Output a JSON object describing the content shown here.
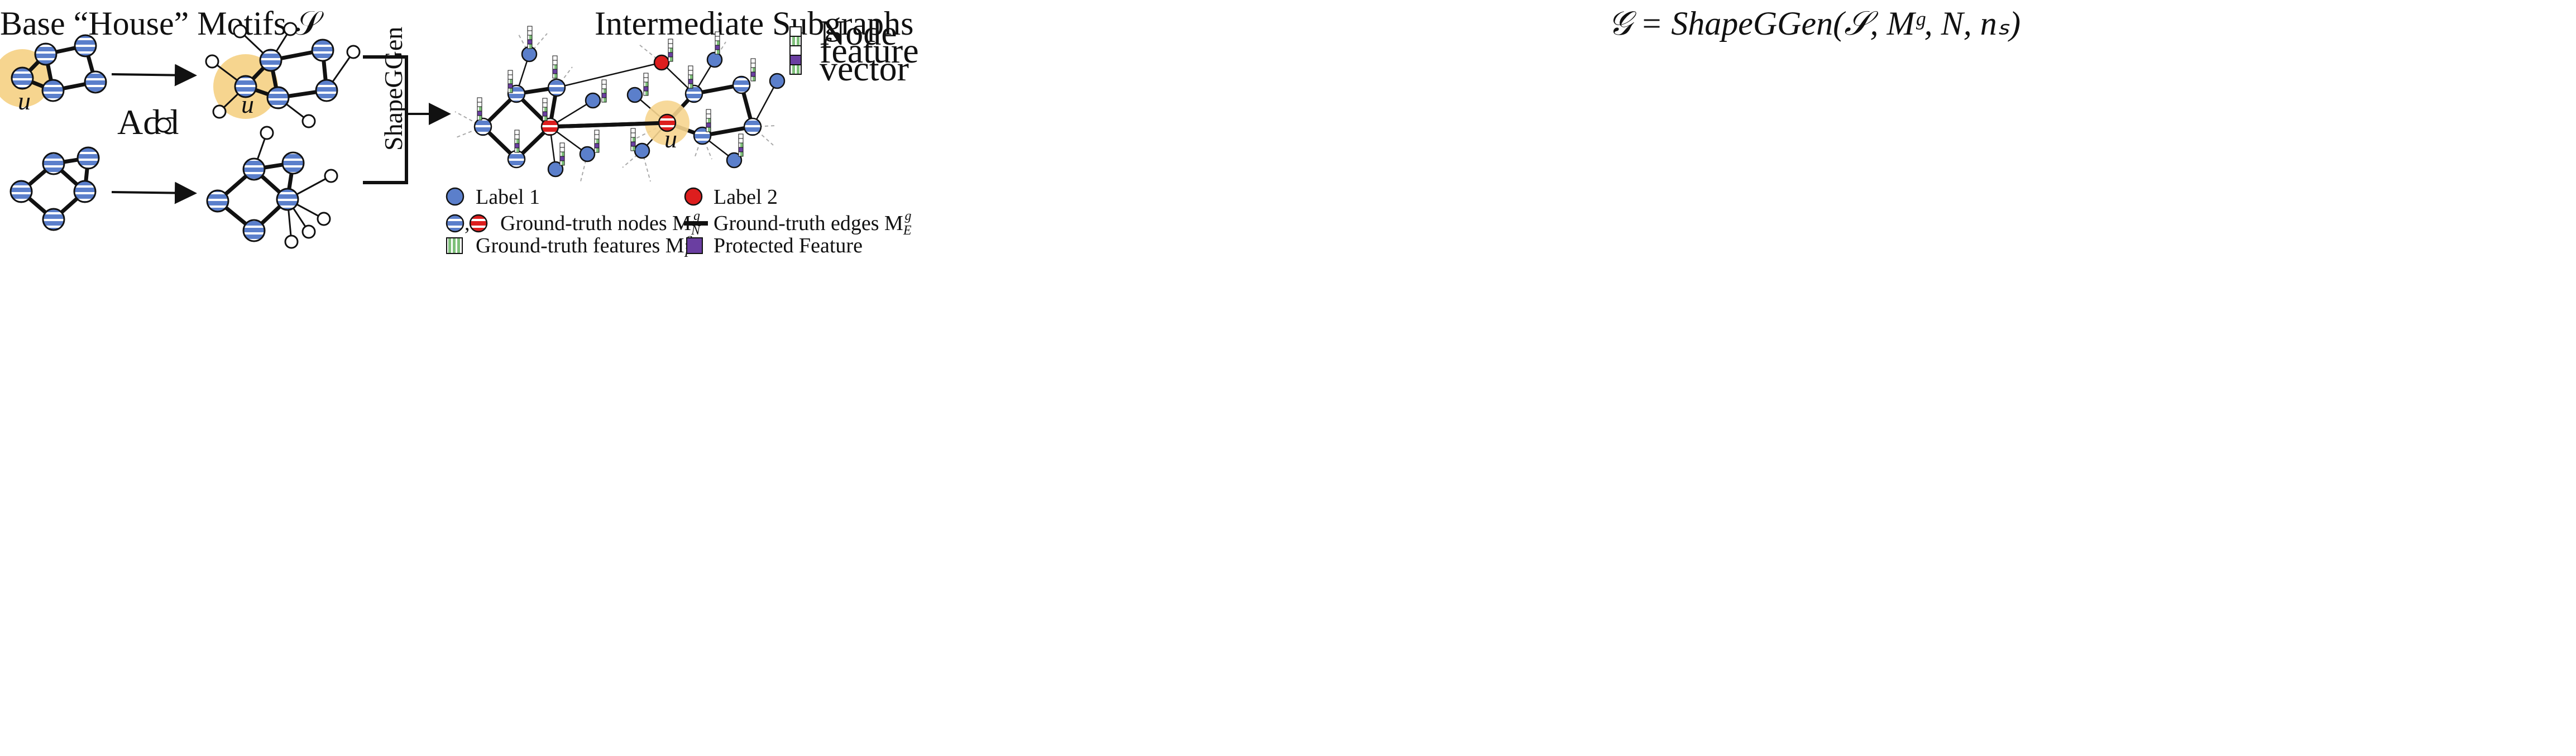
{
  "titles": {
    "base_motifs": "Base “House” Motifs 𝒮",
    "intermediate": "Intermediate Subgraphs",
    "shapeggen_output": "𝒢 = ShapeGGen(𝒮, Mᵍ, N, nₛ)"
  },
  "node_label_u": "u",
  "add_label": "Add",
  "shapeggen_label": "ShapeGGen",
  "feature_legend": {
    "line1": "Node",
    "line2": "feature",
    "line3": "vector"
  },
  "legend": {
    "label1": "Label 1",
    "label2": "Label 2",
    "gt_nodes": "Ground-truth nodes M",
    "gt_nodes_sup": "g",
    "gt_nodes_sub": "N",
    "gt_edges": "Ground-truth edges M",
    "gt_edges_sup": "g",
    "gt_edges_sub": "E",
    "gt_features": "Ground-truth features M",
    "gt_features_sup": "g",
    "gt_features_sub": "F",
    "protected": "Protected Feature",
    "comma": ","
  },
  "colors": {
    "label1_blue": "#5b7fcb",
    "label2_red": "#dd1e1e",
    "highlight": "#f6d58f",
    "feature_green": "#7ec07a",
    "protected_purple": "#6a3ea1"
  }
}
